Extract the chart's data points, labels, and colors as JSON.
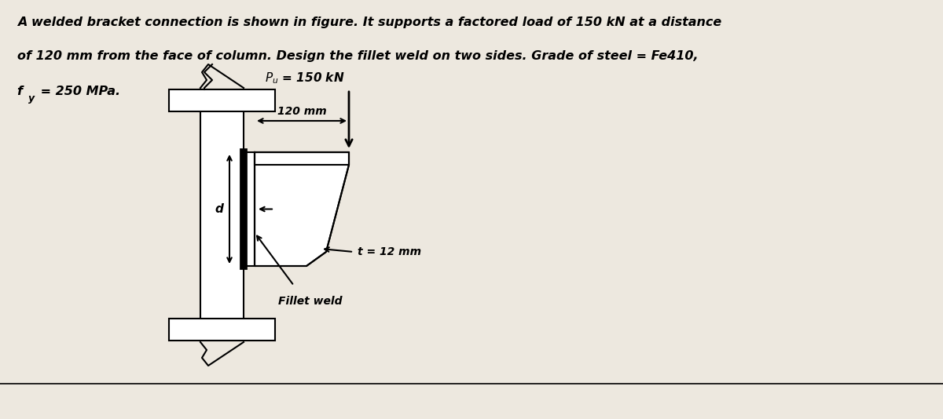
{
  "bg_color": "#ede8df",
  "text_color": "#000000",
  "title_line1": "A welded bracket connection is shown in figure. It supports a factored load of 150 kN at a distance",
  "title_line2": "of 120 mm from the face of column. Design the fillet weld on two sides. Grade of steel = Fe410,",
  "label_pu": "$P_u$ = 150 kN",
  "label_120": "120 mm",
  "label_d": "d",
  "label_t": "t = 12 mm",
  "label_fillet": "Fillet weld"
}
